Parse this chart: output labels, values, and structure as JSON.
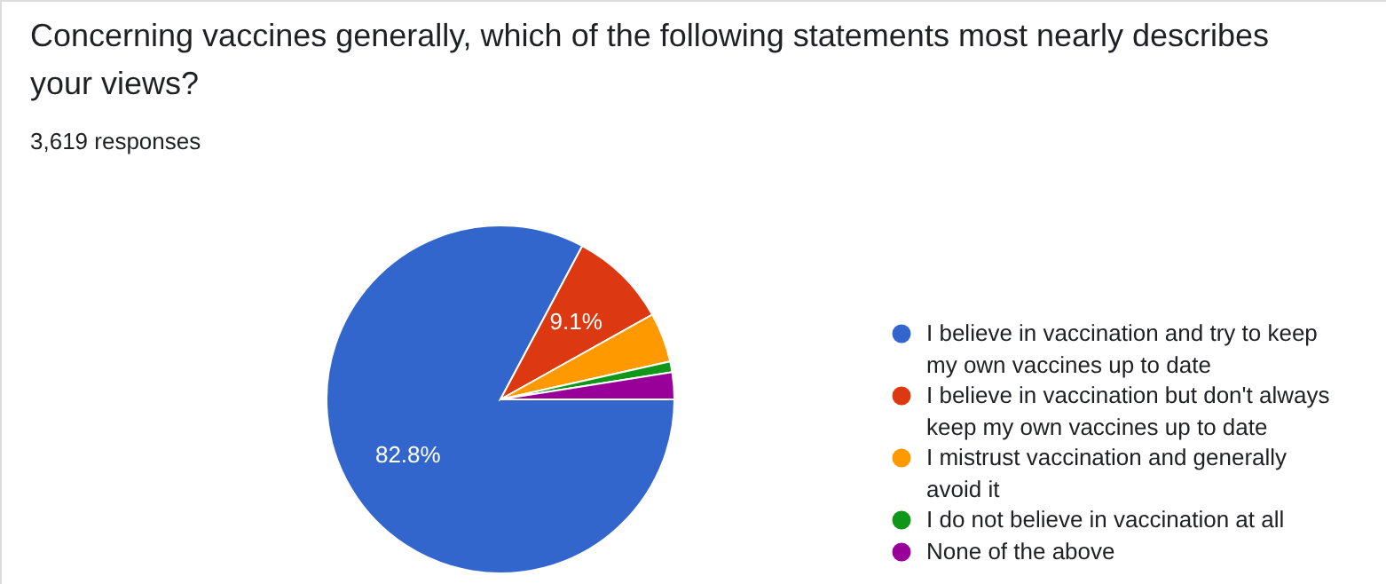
{
  "chart_data": {
    "type": "pie",
    "title": "Concerning vaccines generally, which of the following statements most nearly describes your views?",
    "subtitle": "3,619 responses",
    "categories": [
      "I believe in vaccination and try to keep my own vaccines up to date",
      "I believe in vaccination but don't always keep my own vaccines up to date",
      "I mistrust vaccination and generally avoid it",
      "I do not believe in vaccination at all",
      "None of the above"
    ],
    "values": [
      82.8,
      9.1,
      4.6,
      1.0,
      2.5
    ],
    "colors": [
      "#3366cc",
      "#dc3912",
      "#ff9900",
      "#109618",
      "#990099"
    ],
    "value_labels": [
      "82.8%",
      "9.1%",
      null,
      null,
      null
    ],
    "legend": "right"
  }
}
